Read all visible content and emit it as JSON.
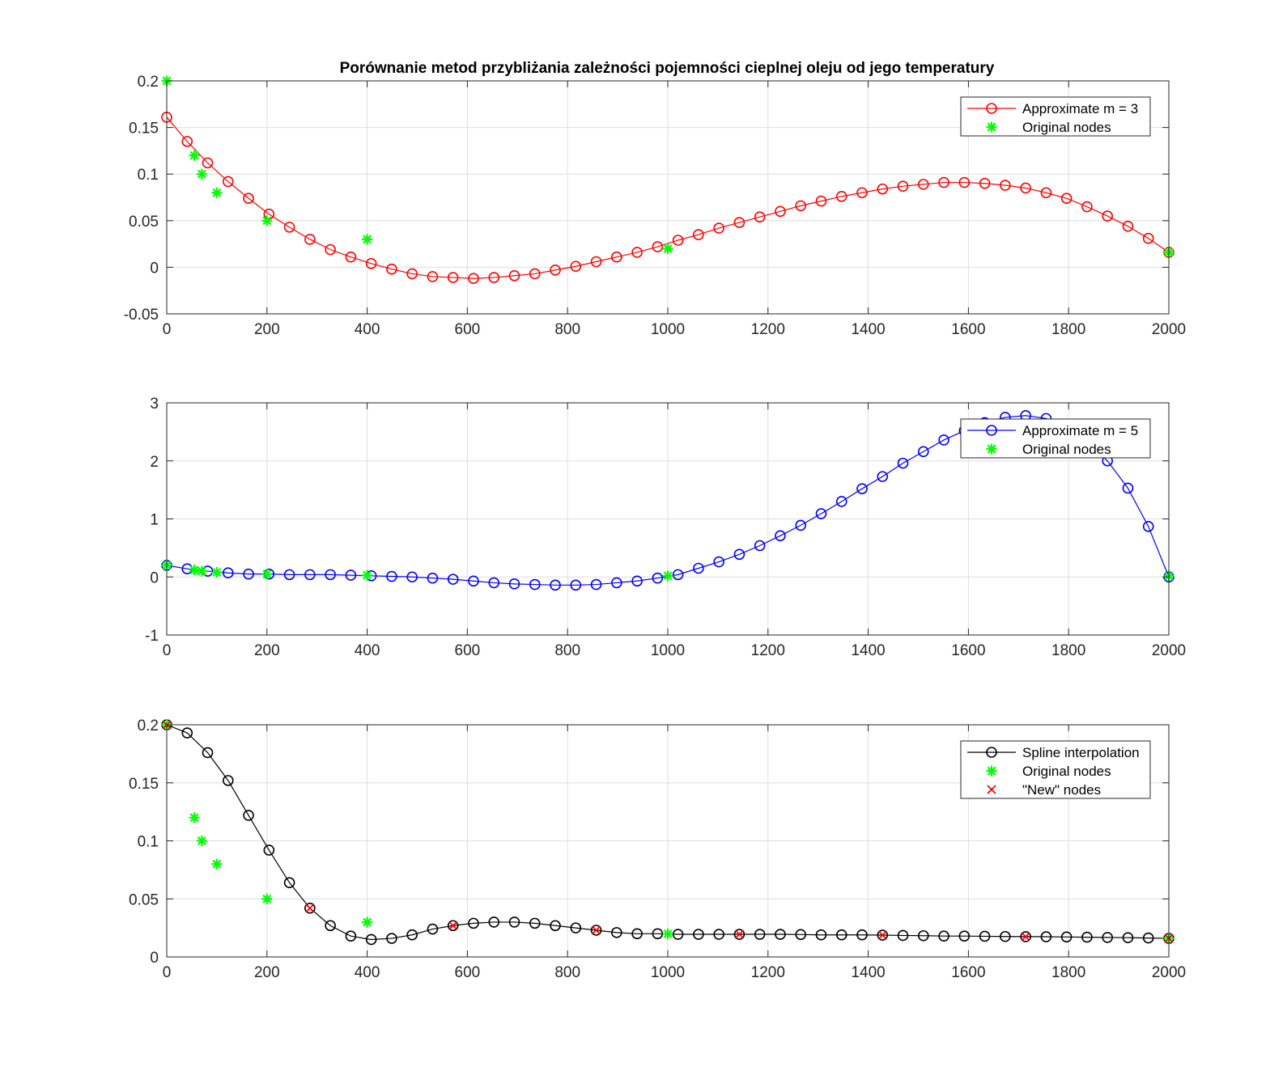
{
  "figure": {
    "title": "Porównanie metod przybliżania zależności pojemności cieplnej oleju od jego temperatury"
  },
  "chart_data": [
    {
      "type": "line",
      "title": "Porównanie metod przybliżania zależności pojemności cieplnej oleju od jego temperatury",
      "xlabel": "",
      "ylabel": "",
      "xlim": [
        0,
        2000
      ],
      "ylim": [
        -0.05,
        0.2
      ],
      "xticks": [
        0,
        200,
        400,
        600,
        800,
        1000,
        1200,
        1400,
        1600,
        1800,
        2000
      ],
      "yticks": [
        -0.05,
        0,
        0.05,
        0.1,
        0.15,
        0.2
      ],
      "ytick_labels": [
        "-0.05",
        "0",
        "0.05",
        "0.1",
        "0.15",
        "0.2"
      ],
      "grid": true,
      "legend_position": "top-right",
      "series": [
        {
          "name": "Approximate m = 3",
          "color": "#ff0000",
          "marker": "circle",
          "line": true,
          "x": [
            0,
            40.82,
            81.63,
            122.45,
            163.27,
            204.08,
            244.9,
            285.71,
            326.53,
            367.35,
            408.16,
            448.98,
            489.8,
            530.61,
            571.43,
            612.24,
            653.06,
            693.88,
            734.69,
            775.51,
            816.33,
            857.14,
            897.96,
            938.78,
            979.59,
            1020.41,
            1061.22,
            1102.04,
            1142.86,
            1183.67,
            1224.49,
            1265.31,
            1306.12,
            1346.94,
            1387.76,
            1428.57,
            1469.39,
            1510.2,
            1551.02,
            1591.84,
            1632.65,
            1673.47,
            1714.29,
            1755.1,
            1795.92,
            1836.73,
            1877.55,
            1918.37,
            1959.18,
            2000
          ],
          "y": [
            0.161,
            0.135,
            0.112,
            0.092,
            0.074,
            0.057,
            0.043,
            0.03,
            0.019,
            0.011,
            0.004,
            -0.002,
            -0.007,
            -0.01,
            -0.011,
            -0.012,
            -0.011,
            -0.009,
            -0.007,
            -0.003,
            0.001,
            0.006,
            0.011,
            0.016,
            0.022,
            0.029,
            0.035,
            0.042,
            0.048,
            0.054,
            0.06,
            0.066,
            0.071,
            0.076,
            0.08,
            0.084,
            0.087,
            0.089,
            0.091,
            0.091,
            0.09,
            0.088,
            0.085,
            0.08,
            0.074,
            0.065,
            0.055,
            0.044,
            0.031,
            0.016
          ]
        },
        {
          "name": "Original nodes",
          "color": "#00ff00",
          "marker": "star",
          "line": false,
          "x": [
            0,
            55,
            70,
            100,
            200,
            400,
            1000,
            2000
          ],
          "y": [
            0.2,
            0.12,
            0.1,
            0.08,
            0.05,
            0.03,
            0.02,
            0.016
          ]
        }
      ]
    },
    {
      "type": "line",
      "title": "",
      "xlabel": "",
      "ylabel": "",
      "xlim": [
        0,
        2000
      ],
      "ylim": [
        -1,
        3
      ],
      "xticks": [
        0,
        200,
        400,
        600,
        800,
        1000,
        1200,
        1400,
        1600,
        1800,
        2000
      ],
      "yticks": [
        -1,
        0,
        1,
        2,
        3
      ],
      "ytick_labels": [
        "-1",
        "0",
        "1",
        "2",
        "3"
      ],
      "grid": true,
      "legend_position": "top-right",
      "series": [
        {
          "name": "Approximate m = 5",
          "color": "#0000ff",
          "marker": "circle",
          "line": true,
          "x": [
            0,
            40.82,
            81.63,
            122.45,
            163.27,
            204.08,
            244.9,
            285.71,
            326.53,
            367.35,
            408.16,
            448.98,
            489.8,
            530.61,
            571.43,
            612.24,
            653.06,
            693.88,
            734.69,
            775.51,
            816.33,
            857.14,
            897.96,
            938.78,
            979.59,
            1020.41,
            1061.22,
            1102.04,
            1142.86,
            1183.67,
            1224.49,
            1265.31,
            1306.12,
            1346.94,
            1387.76,
            1428.57,
            1469.39,
            1510.2,
            1551.02,
            1591.84,
            1632.65,
            1673.47,
            1714.29,
            1755.1,
            1795.92,
            1836.73,
            1877.55,
            1918.37,
            1959.18,
            2000
          ],
          "y": [
            0.2,
            0.14,
            0.1,
            0.07,
            0.05,
            0.05,
            0.04,
            0.04,
            0.04,
            0.03,
            0.02,
            0.01,
            0.0,
            -0.02,
            -0.04,
            -0.07,
            -0.1,
            -0.12,
            -0.13,
            -0.14,
            -0.14,
            -0.13,
            -0.1,
            -0.07,
            -0.02,
            0.04,
            0.15,
            0.26,
            0.39,
            0.54,
            0.71,
            0.89,
            1.09,
            1.3,
            1.52,
            1.73,
            1.96,
            2.16,
            2.36,
            2.52,
            2.66,
            2.75,
            2.78,
            2.73,
            2.57,
            2.33,
            2.0,
            1.53,
            0.87,
            0.0
          ]
        },
        {
          "name": "Original nodes",
          "color": "#00ff00",
          "marker": "star",
          "line": false,
          "x": [
            0,
            55,
            70,
            100,
            200,
            400,
            1000,
            2000
          ],
          "y": [
            0.2,
            0.12,
            0.1,
            0.08,
            0.05,
            0.03,
            0.02,
            0.016
          ]
        }
      ]
    },
    {
      "type": "line",
      "title": "",
      "xlabel": "",
      "ylabel": "",
      "xlim": [
        0,
        2000
      ],
      "ylim": [
        0,
        0.2
      ],
      "xticks": [
        0,
        200,
        400,
        600,
        800,
        1000,
        1200,
        1400,
        1600,
        1800,
        2000
      ],
      "yticks": [
        0,
        0.05,
        0.1,
        0.15,
        0.2
      ],
      "ytick_labels": [
        "0",
        "0.05",
        "0.1",
        "0.15",
        "0.2"
      ],
      "grid": true,
      "legend_position": "top-right",
      "series": [
        {
          "name": "Spline interpolation",
          "color": "#000000",
          "marker": "circle",
          "line": true,
          "x": [
            0,
            40.82,
            81.63,
            122.45,
            163.27,
            204.08,
            244.9,
            285.71,
            326.53,
            367.35,
            408.16,
            448.98,
            489.8,
            530.61,
            571.43,
            612.24,
            653.06,
            693.88,
            734.69,
            775.51,
            816.33,
            857.14,
            897.96,
            938.78,
            979.59,
            1020.41,
            1061.22,
            1102.04,
            1142.86,
            1183.67,
            1224.49,
            1265.31,
            1306.12,
            1346.94,
            1387.76,
            1428.57,
            1469.39,
            1510.2,
            1551.02,
            1591.84,
            1632.65,
            1673.47,
            1714.29,
            1755.1,
            1795.92,
            1836.73,
            1877.55,
            1918.37,
            1959.18,
            2000
          ],
          "y": [
            0.2,
            0.193,
            0.176,
            0.152,
            0.122,
            0.092,
            0.064,
            0.042,
            0.027,
            0.018,
            0.015,
            0.016,
            0.019,
            0.024,
            0.027,
            0.029,
            0.03,
            0.03,
            0.029,
            0.027,
            0.025,
            0.023,
            0.021,
            0.02,
            0.02,
            0.0195,
            0.0195,
            0.0195,
            0.0195,
            0.0195,
            0.0195,
            0.0193,
            0.019,
            0.019,
            0.019,
            0.0188,
            0.0185,
            0.0183,
            0.018,
            0.018,
            0.0178,
            0.0176,
            0.0175,
            0.0174,
            0.0172,
            0.017,
            0.0168,
            0.0166,
            0.0163,
            0.016
          ]
        },
        {
          "name": "Original nodes",
          "color": "#00ff00",
          "marker": "star",
          "line": false,
          "x": [
            0,
            55,
            70,
            100,
            200,
            400,
            1000,
            2000
          ],
          "y": [
            0.2,
            0.12,
            0.1,
            0.08,
            0.05,
            0.03,
            0.02,
            0.016
          ]
        },
        {
          "name": "\"New\" nodes",
          "color": "#ff0000",
          "marker": "x",
          "line": false,
          "x": [
            0,
            285.71,
            571.43,
            857.14,
            1142.86,
            1428.57,
            1714.29,
            2000
          ],
          "y": [
            0.2,
            0.042,
            0.027,
            0.023,
            0.0195,
            0.0188,
            0.0175,
            0.016
          ]
        }
      ]
    }
  ]
}
